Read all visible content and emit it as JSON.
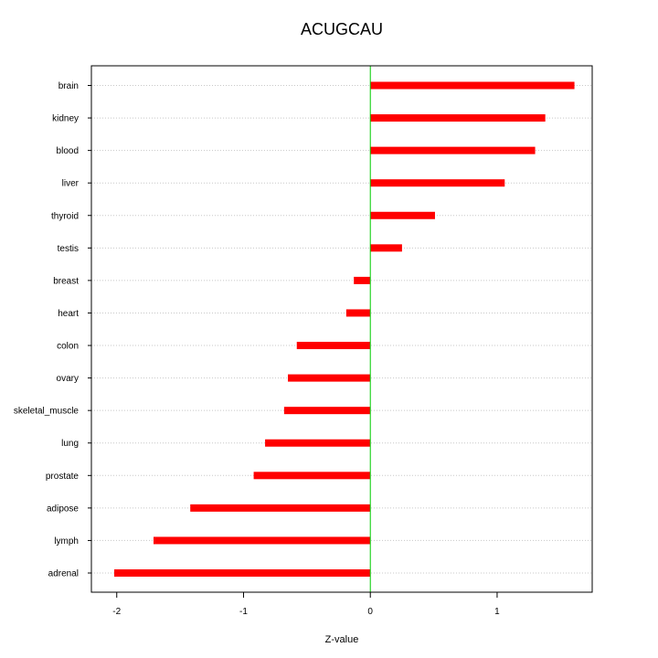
{
  "chart_data": {
    "type": "bar",
    "orientation": "horizontal",
    "title": "ACUGCAU",
    "xlabel": "Z-value",
    "ylabel": "",
    "xlim": [
      -2.2,
      1.75
    ],
    "xticks": [
      -2,
      -1,
      0,
      1
    ],
    "xtick_labels": [
      "-2",
      "-1",
      "0",
      "1"
    ],
    "grid": "horizontal dotted",
    "reference_line": {
      "x": 0,
      "color": "#00cc00"
    },
    "bar_color": "#ff0000",
    "categories": [
      "brain",
      "kidney",
      "blood",
      "liver",
      "thyroid",
      "testis",
      "breast",
      "heart",
      "colon",
      "ovary",
      "skeletal_muscle",
      "lung",
      "prostate",
      "adipose",
      "lymph",
      "adrenal"
    ],
    "values": [
      1.61,
      1.38,
      1.3,
      1.06,
      0.51,
      0.25,
      -0.13,
      -0.19,
      -0.58,
      -0.65,
      -0.68,
      -0.83,
      -0.92,
      -1.42,
      -1.71,
      -2.02
    ]
  }
}
